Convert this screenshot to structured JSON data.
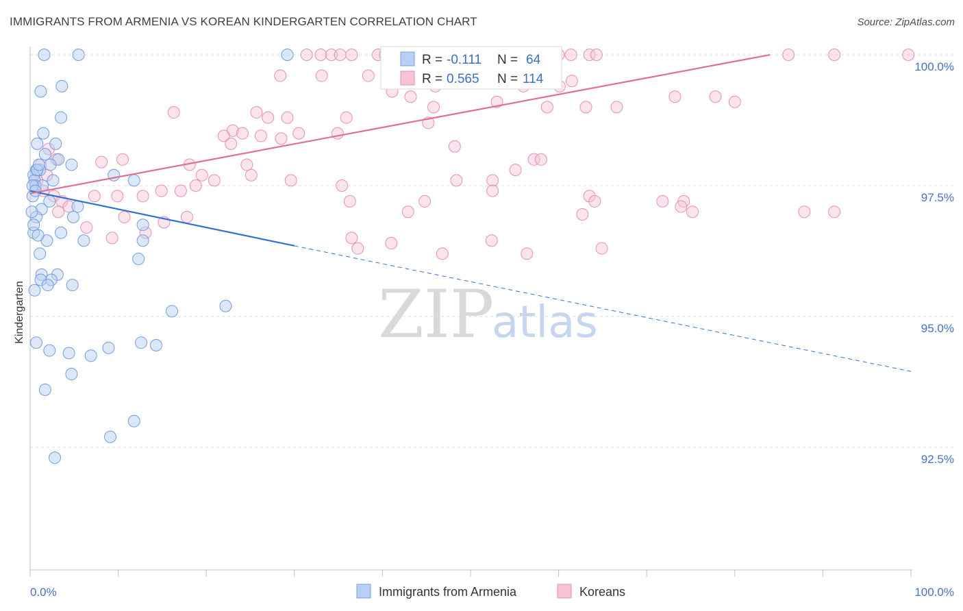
{
  "header": {
    "title": "IMMIGRANTS FROM ARMENIA VS KOREAN KINDERGARTEN CORRELATION CHART",
    "source": "Source: ZipAtlas.com"
  },
  "watermark": {
    "zip": "ZIP",
    "atlas": "atlas"
  },
  "colors": {
    "armenia": "#6f9fe0",
    "armenia_fill": "#b9d0f2",
    "armenia_line": "#2f72d6",
    "korean": "#e88fb0",
    "korean_fill": "#f6c4d6",
    "korean_line": "#e06f98",
    "tick": "#4472c4"
  },
  "legend": {
    "r_label": "R =",
    "n_label": "N =",
    "armenia": {
      "r": "-0.111",
      "n": "64"
    },
    "korean": {
      "r": "0.565",
      "n": "114"
    }
  },
  "chart_data": {
    "type": "scatter",
    "title": "IMMIGRANTS FROM ARMENIA VS KOREAN KINDERGARTEN CORRELATION CHART",
    "xlabel": "",
    "ylabel": "Kindergarten",
    "xlim": [
      0,
      100
    ],
    "ylim": [
      90.2,
      100.4
    ],
    "x_tick_labels": [
      "0.0%",
      "100.0%"
    ],
    "y_ticks": [
      92.5,
      95.0,
      97.5,
      100.0
    ],
    "y_tick_labels": [
      "92.5%",
      "95.0%",
      "97.5%",
      "100.0%"
    ],
    "legend_entries": [
      "Immigrants from Armenia",
      "Koreans"
    ],
    "series": [
      {
        "name": "Immigrants from Armenia",
        "r": -0.111,
        "n": 64,
        "trend": {
          "x0": 0,
          "y0": 97.4,
          "x1": 30,
          "y1": 96.35,
          "dash_to_x": 100,
          "dash_to_y": 93.95
        },
        "points": [
          [
            1.6,
            100.0
          ],
          [
            5.5,
            100.0
          ],
          [
            29.2,
            100.0
          ],
          [
            1.2,
            99.3
          ],
          [
            3.6,
            99.4
          ],
          [
            3.5,
            98.8
          ],
          [
            1.5,
            98.5
          ],
          [
            0.8,
            98.3
          ],
          [
            2.9,
            98.3
          ],
          [
            1.7,
            98.1
          ],
          [
            3.2,
            98.0
          ],
          [
            0.7,
            97.8
          ],
          [
            2.3,
            97.9
          ],
          [
            4.7,
            97.9
          ],
          [
            1.1,
            97.8
          ],
          [
            0.4,
            97.7
          ],
          [
            0.5,
            97.6
          ],
          [
            0.6,
            97.5
          ],
          [
            1.4,
            97.5
          ],
          [
            2.6,
            97.6
          ],
          [
            9.5,
            97.7
          ],
          [
            11.8,
            97.6
          ],
          [
            5.4,
            97.1
          ],
          [
            1.3,
            97.05
          ],
          [
            2.2,
            97.2
          ],
          [
            0.7,
            96.9
          ],
          [
            0.3,
            97.3
          ],
          [
            0.2,
            97.0
          ],
          [
            0.4,
            96.6
          ],
          [
            3.5,
            96.6
          ],
          [
            4.9,
            96.9
          ],
          [
            0.4,
            96.75
          ],
          [
            12.8,
            96.75
          ],
          [
            1.9,
            96.45
          ],
          [
            6.1,
            96.45
          ],
          [
            0.9,
            96.55
          ],
          [
            1.1,
            96.2
          ],
          [
            12.8,
            96.45
          ],
          [
            1.3,
            95.8
          ],
          [
            3.1,
            95.8
          ],
          [
            2.4,
            95.7
          ],
          [
            1.2,
            95.7
          ],
          [
            2.0,
            95.6
          ],
          [
            4.8,
            95.6
          ],
          [
            0.5,
            95.5
          ],
          [
            0.7,
            94.5
          ],
          [
            2.2,
            94.35
          ],
          [
            14.3,
            94.45
          ],
          [
            4.4,
            94.3
          ],
          [
            8.9,
            94.4
          ],
          [
            6.9,
            94.25
          ],
          [
            4.7,
            93.9
          ],
          [
            1.7,
            93.6
          ],
          [
            11.8,
            93.0
          ],
          [
            9.1,
            92.7
          ],
          [
            2.8,
            92.3
          ],
          [
            0.3,
            97.5
          ],
          [
            0.6,
            97.4
          ],
          [
            12.3,
            96.1
          ],
          [
            16.1,
            95.1
          ],
          [
            22.2,
            95.2
          ],
          [
            12.6,
            94.5
          ],
          [
            0.8,
            97.8
          ],
          [
            1.0,
            97.9
          ]
        ]
      },
      {
        "name": "Koreans",
        "r": 0.565,
        "n": 114,
        "trend": {
          "x0": 0,
          "y0": 97.35,
          "x1": 84,
          "y1": 100.0
        },
        "points": [
          [
            31.4,
            100.0
          ],
          [
            33.0,
            100.0
          ],
          [
            34.2,
            100.0
          ],
          [
            35.2,
            100.0
          ],
          [
            36.5,
            100.0
          ],
          [
            39.5,
            100.0
          ],
          [
            40.3,
            100.0
          ],
          [
            41.0,
            100.0
          ],
          [
            44.0,
            100.0
          ],
          [
            44.8,
            100.0
          ],
          [
            47.0,
            100.0
          ],
          [
            48.0,
            100.0
          ],
          [
            50.3,
            100.0
          ],
          [
            51.5,
            100.0
          ],
          [
            55.5,
            100.0
          ],
          [
            57.0,
            100.0
          ],
          [
            60.0,
            100.0
          ],
          [
            61.4,
            100.0
          ],
          [
            63.5,
            100.0
          ],
          [
            64.3,
            100.0
          ],
          [
            86.1,
            100.0
          ],
          [
            91.3,
            100.0
          ],
          [
            99.7,
            100.0
          ],
          [
            28.4,
            99.6
          ],
          [
            33.1,
            99.6
          ],
          [
            38.4,
            99.6
          ],
          [
            41.1,
            99.3
          ],
          [
            46.0,
            99.4
          ],
          [
            53.8,
            99.5
          ],
          [
            56.0,
            99.4
          ],
          [
            57.1,
            99.5
          ],
          [
            58.8,
            99.5
          ],
          [
            60.1,
            99.4
          ],
          [
            61.5,
            99.5
          ],
          [
            58.7,
            99.0
          ],
          [
            16.3,
            98.9
          ],
          [
            25.7,
            98.9
          ],
          [
            27.0,
            98.8
          ],
          [
            29.2,
            98.8
          ],
          [
            35.9,
            98.8
          ],
          [
            43.2,
            99.2
          ],
          [
            45.8,
            99.0
          ],
          [
            53.0,
            99.1
          ],
          [
            63.1,
            99.0
          ],
          [
            66.6,
            99.0
          ],
          [
            73.2,
            99.2
          ],
          [
            77.8,
            99.2
          ],
          [
            80.0,
            99.1
          ],
          [
            23.0,
            98.55
          ],
          [
            28.5,
            98.4
          ],
          [
            30.5,
            98.5
          ],
          [
            24.1,
            98.5
          ],
          [
            26.2,
            98.45
          ],
          [
            34.9,
            98.5
          ],
          [
            22.0,
            98.45
          ],
          [
            22.8,
            98.3
          ],
          [
            45.2,
            98.7
          ],
          [
            48.2,
            98.25
          ],
          [
            57.2,
            98.0
          ],
          [
            55.1,
            97.8
          ],
          [
            52.5,
            97.6
          ],
          [
            48.4,
            97.6
          ],
          [
            35.4,
            97.5
          ],
          [
            36.3,
            97.2
          ],
          [
            44.8,
            97.2
          ],
          [
            52.5,
            97.4
          ],
          [
            63.5,
            97.3
          ],
          [
            64.1,
            97.2
          ],
          [
            71.8,
            97.2
          ],
          [
            74.2,
            97.2
          ],
          [
            75.2,
            97.0
          ],
          [
            87.9,
            97.0
          ],
          [
            91.3,
            97.0
          ],
          [
            18.1,
            97.9
          ],
          [
            19.5,
            97.7
          ],
          [
            20.9,
            97.6
          ],
          [
            25.1,
            97.7
          ],
          [
            17.1,
            97.4
          ],
          [
            18.8,
            97.5
          ],
          [
            0.8,
            97.6
          ],
          [
            1.9,
            97.7
          ],
          [
            2.7,
            97.3
          ],
          [
            3.6,
            97.2
          ],
          [
            7.3,
            97.3
          ],
          [
            9.9,
            97.3
          ],
          [
            12.8,
            97.3
          ],
          [
            14.9,
            97.4
          ],
          [
            3.2,
            97.0
          ],
          [
            4.4,
            97.1
          ],
          [
            10.7,
            96.9
          ],
          [
            13.1,
            96.6
          ],
          [
            15.2,
            96.8
          ],
          [
            17.8,
            96.9
          ],
          [
            6.4,
            96.7
          ],
          [
            9.3,
            96.5
          ],
          [
            1.2,
            97.9
          ],
          [
            2.1,
            98.2
          ],
          [
            3.0,
            98.0
          ],
          [
            8.1,
            97.95
          ],
          [
            10.5,
            98.0
          ],
          [
            24.6,
            97.9
          ],
          [
            29.6,
            97.6
          ],
          [
            42.9,
            97.0
          ],
          [
            36.5,
            96.5
          ],
          [
            37.2,
            96.3
          ],
          [
            41.0,
            96.4
          ],
          [
            46.8,
            96.2
          ],
          [
            56.4,
            96.2
          ],
          [
            64.9,
            96.3
          ],
          [
            73.9,
            97.1
          ],
          [
            62.7,
            96.95
          ],
          [
            52.4,
            96.45
          ],
          [
            58.0,
            98.0
          ],
          [
            0.5,
            97.6
          ],
          [
            1.5,
            97.4
          ]
        ]
      }
    ]
  },
  "bottom_legend": {
    "armenia": "Immigrants from Armenia",
    "korean": "Koreans"
  }
}
